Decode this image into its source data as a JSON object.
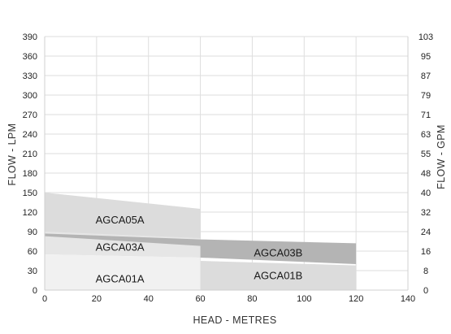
{
  "chart_data": {
    "type": "area",
    "xlabel": "HEAD - METRES",
    "ylabel": "FLOW - LPM",
    "y2label": "FLOW - GPM",
    "xlim": [
      0,
      140
    ],
    "ylim": [
      0,
      390
    ],
    "x_ticks": [
      0,
      20,
      40,
      60,
      80,
      100,
      120,
      140
    ],
    "y_ticks": [
      0,
      30,
      60,
      90,
      120,
      150,
      180,
      210,
      240,
      270,
      300,
      330,
      360,
      390
    ],
    "y2_ticks": [
      "0",
      "8",
      "16",
      "24",
      "32",
      "40",
      "48",
      "55",
      "63",
      "71",
      "79",
      "87",
      "95",
      "103"
    ],
    "grid": true,
    "series": [
      {
        "name": "AGCA05A",
        "color": "#dcdcdc",
        "polygon": [
          [
            0,
            150
          ],
          [
            60,
            125
          ],
          [
            60,
            75
          ],
          [
            0,
            87
          ]
        ],
        "label_at": [
          29,
          107
        ]
      },
      {
        "name": "AGCA03A",
        "color": "#e6e6e6",
        "polygon": [
          [
            0,
            90
          ],
          [
            60,
            80
          ],
          [
            60,
            50
          ],
          [
            0,
            55
          ]
        ],
        "label_at": [
          29,
          65
        ]
      },
      {
        "name": "AGCA01A",
        "color": "#f1f1f1",
        "polygon": [
          [
            0,
            55
          ],
          [
            60,
            50
          ],
          [
            60,
            0
          ],
          [
            0,
            0
          ]
        ],
        "label_at": [
          29,
          16
        ]
      },
      {
        "name": "AGCA03B",
        "color": "#b4b4b4",
        "polygon": [
          [
            0,
            87
          ],
          [
            60,
            78
          ],
          [
            120,
            72
          ],
          [
            120,
            40
          ],
          [
            60,
            50
          ],
          [
            60,
            68
          ],
          [
            0,
            83
          ]
        ],
        "label_at": [
          90,
          56
        ]
      },
      {
        "name": "AGCA01B",
        "color": "#dcdcdc",
        "polygon": [
          [
            60,
            45
          ],
          [
            120,
            38
          ],
          [
            120,
            0
          ],
          [
            60,
            0
          ]
        ],
        "label_at": [
          90,
          21
        ]
      }
    ]
  }
}
